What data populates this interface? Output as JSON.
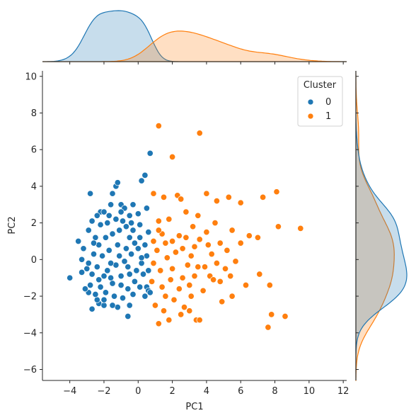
{
  "chart_data": {
    "type": "scatter",
    "xlabel": "PC1",
    "ylabel": "PC2",
    "xlim": [
      -5.6,
      12.2
    ],
    "ylim": [
      -6.6,
      10.3
    ],
    "x_ticks": [
      -4,
      -2,
      0,
      2,
      4,
      6,
      8,
      10,
      12
    ],
    "y_ticks": [
      -6,
      -4,
      -2,
      0,
      2,
      4,
      6,
      8,
      10
    ],
    "legend": {
      "title": "Cluster",
      "placement": "upper-right",
      "entries": [
        "0",
        "1"
      ]
    },
    "marginals": {
      "type": "kde",
      "top": "PC1 density per cluster",
      "right": "PC2 density per cluster"
    },
    "colors": {
      "0": "#1f77b4",
      "1": "#ff7f0e"
    },
    "series": [
      {
        "name": "0",
        "points": [
          [
            -4.0,
            -1.0
          ],
          [
            -3.5,
            1.0
          ],
          [
            -3.3,
            0.0
          ],
          [
            -3.0,
            -0.5
          ],
          [
            -2.9,
            -1.8
          ],
          [
            -2.8,
            3.6
          ],
          [
            -2.7,
            2.1
          ],
          [
            -2.7,
            -2.7
          ],
          [
            -2.5,
            1.2
          ],
          [
            -2.3,
            -2.4
          ],
          [
            -2.2,
            2.6
          ],
          [
            -2.0,
            2.6
          ],
          [
            -2.0,
            -2.5
          ],
          [
            -1.7,
            2.4
          ],
          [
            -1.5,
            3.6
          ],
          [
            -1.3,
            4.0
          ],
          [
            -1.2,
            4.2
          ],
          [
            -1.0,
            3.0
          ],
          [
            -0.8,
            2.8
          ],
          [
            -0.5,
            2.4
          ],
          [
            -0.3,
            3.0
          ],
          [
            0.0,
            2.5
          ],
          [
            0.2,
            4.3
          ],
          [
            0.4,
            4.6
          ],
          [
            0.7,
            5.8
          ],
          [
            0.5,
            2.8
          ],
          [
            0.6,
            1.5
          ],
          [
            -0.6,
            -3.1
          ],
          [
            0.5,
            -1.5
          ],
          [
            0.6,
            -1.7
          ],
          [
            0.7,
            -1.8
          ],
          [
            -1.2,
            -2.6
          ],
          [
            -0.5,
            -2.5
          ],
          [
            0.4,
            -2.0
          ],
          [
            -1.5,
            -2.5
          ],
          [
            -2.0,
            -2.2
          ],
          [
            -2.4,
            -2.2
          ],
          [
            -2.2,
            -1.5
          ],
          [
            -1.6,
            -1.0
          ],
          [
            -1.0,
            -1.4
          ],
          [
            -0.6,
            -1.6
          ],
          [
            -0.2,
            -1.2
          ],
          [
            0.3,
            -0.8
          ],
          [
            0.6,
            -0.6
          ],
          [
            0.5,
            0.2
          ],
          [
            0.4,
            0.8
          ],
          [
            0.1,
            1.2
          ],
          [
            -0.3,
            1.6
          ],
          [
            -0.7,
            1.8
          ],
          [
            -1.1,
            1.6
          ],
          [
            -1.5,
            1.4
          ],
          [
            -1.9,
            1.2
          ],
          [
            -2.3,
            0.8
          ],
          [
            -2.6,
            0.3
          ],
          [
            -2.9,
            -0.2
          ],
          [
            -2.7,
            -0.8
          ],
          [
            -2.3,
            -1.1
          ],
          [
            -1.8,
            -0.6
          ],
          [
            -1.3,
            -0.3
          ],
          [
            -0.8,
            -0.1
          ],
          [
            -0.4,
            0.3
          ],
          [
            0.0,
            0.6
          ],
          [
            0.2,
            -0.2
          ],
          [
            -0.1,
            -0.6
          ],
          [
            -0.5,
            -0.8
          ],
          [
            -1.0,
            -0.9
          ],
          [
            -1.5,
            -1.3
          ],
          [
            -2.0,
            -0.9
          ],
          [
            -2.4,
            -0.4
          ],
          [
            -2.6,
            0.9
          ],
          [
            -2.2,
            1.9
          ],
          [
            -1.8,
            2.0
          ],
          [
            -1.3,
            2.2
          ],
          [
            -0.9,
            2.1
          ],
          [
            -0.5,
            1.2
          ],
          [
            -0.2,
            0.9
          ],
          [
            0.2,
            0.1
          ],
          [
            -1.7,
            0.5
          ],
          [
            -1.2,
            0.8
          ],
          [
            -0.7,
            0.6
          ],
          [
            -2.1,
            0.2
          ],
          [
            -1.6,
            -0.2
          ],
          [
            -1.1,
            0.2
          ],
          [
            -0.6,
            -0.4
          ],
          [
            -2.8,
            -1.4
          ],
          [
            -3.1,
            -1.6
          ],
          [
            -2.5,
            -1.9
          ],
          [
            -1.9,
            -1.8
          ],
          [
            -1.4,
            -2.0
          ],
          [
            -0.9,
            -2.1
          ],
          [
            -0.3,
            -1.9
          ],
          [
            0.1,
            -1.5
          ],
          [
            -3.2,
            0.6
          ],
          [
            -2.9,
            1.6
          ],
          [
            -2.4,
            2.4
          ],
          [
            -1.6,
            3.0
          ],
          [
            -1.0,
            2.6
          ],
          [
            -0.4,
            2.0
          ],
          [
            0.1,
            1.9
          ],
          [
            -3.3,
            -0.7
          ]
        ]
      },
      {
        "name": "1",
        "points": [
          [
            1.2,
            7.3
          ],
          [
            3.6,
            6.9
          ],
          [
            2.0,
            5.6
          ],
          [
            0.9,
            3.6
          ],
          [
            1.5,
            3.4
          ],
          [
            2.3,
            3.5
          ],
          [
            2.5,
            3.3
          ],
          [
            3.5,
            2.4
          ],
          [
            4.0,
            3.6
          ],
          [
            4.6,
            3.2
          ],
          [
            5.3,
            3.4
          ],
          [
            6.0,
            3.1
          ],
          [
            7.3,
            3.4
          ],
          [
            8.1,
            3.7
          ],
          [
            8.2,
            1.8
          ],
          [
            9.5,
            1.7
          ],
          [
            6.5,
            1.3
          ],
          [
            7.0,
            1.2
          ],
          [
            5.5,
            1.6
          ],
          [
            6.0,
            0.9
          ],
          [
            5.2,
            0.5
          ],
          [
            4.5,
            2.0
          ],
          [
            4.0,
            1.5
          ],
          [
            3.2,
            1.8
          ],
          [
            2.8,
            2.6
          ],
          [
            1.8,
            2.2
          ],
          [
            1.2,
            2.1
          ],
          [
            1.4,
            1.4
          ],
          [
            2.0,
            1.0
          ],
          [
            2.6,
            0.6
          ],
          [
            3.1,
            0.2
          ],
          [
            3.5,
            -0.4
          ],
          [
            4.2,
            -0.9
          ],
          [
            4.8,
            -1.2
          ],
          [
            5.5,
            -2.0
          ],
          [
            6.3,
            -1.4
          ],
          [
            7.1,
            -0.8
          ],
          [
            7.7,
            -1.4
          ],
          [
            7.8,
            -3.0
          ],
          [
            7.6,
            -3.7
          ],
          [
            8.6,
            -3.1
          ],
          [
            3.4,
            -3.3
          ],
          [
            3.6,
            -3.3
          ],
          [
            1.8,
            -3.3
          ],
          [
            1.2,
            -3.5
          ],
          [
            1.0,
            -2.5
          ],
          [
            1.5,
            -2.8
          ],
          [
            2.1,
            -2.2
          ],
          [
            2.7,
            -2.6
          ],
          [
            3.1,
            -2.0
          ],
          [
            3.8,
            -1.7
          ],
          [
            4.4,
            -1.1
          ],
          [
            5.1,
            -0.5
          ],
          [
            5.4,
            -0.9
          ],
          [
            4.9,
            -2.3
          ],
          [
            2.4,
            -1.6
          ],
          [
            1.9,
            -1.1
          ],
          [
            1.3,
            -0.6
          ],
          [
            0.9,
            -0.2
          ],
          [
            1.1,
            0.5
          ],
          [
            1.6,
            0.9
          ],
          [
            2.2,
            0.4
          ],
          [
            2.9,
            -0.3
          ],
          [
            3.3,
            -0.9
          ],
          [
            3.9,
            -0.4
          ],
          [
            4.3,
            0.3
          ],
          [
            4.8,
            0.9
          ],
          [
            3.6,
            1.1
          ],
          [
            2.4,
            1.3
          ],
          [
            1.7,
            0.1
          ],
          [
            2.0,
            -0.5
          ],
          [
            2.6,
            -1.0
          ],
          [
            3.0,
            -1.4
          ],
          [
            1.4,
            -1.5
          ],
          [
            0.8,
            -1.2
          ],
          [
            0.9,
            1.0
          ],
          [
            1.2,
            1.6
          ],
          [
            2.8,
            1.2
          ],
          [
            3.3,
            0.7
          ],
          [
            4.1,
            0.8
          ],
          [
            2.5,
            -3.0
          ],
          [
            3.0,
            -2.8
          ],
          [
            1.6,
            -2.0
          ],
          [
            4.6,
            -0.2
          ],
          [
            5.7,
            -0.1
          ]
        ]
      }
    ]
  }
}
